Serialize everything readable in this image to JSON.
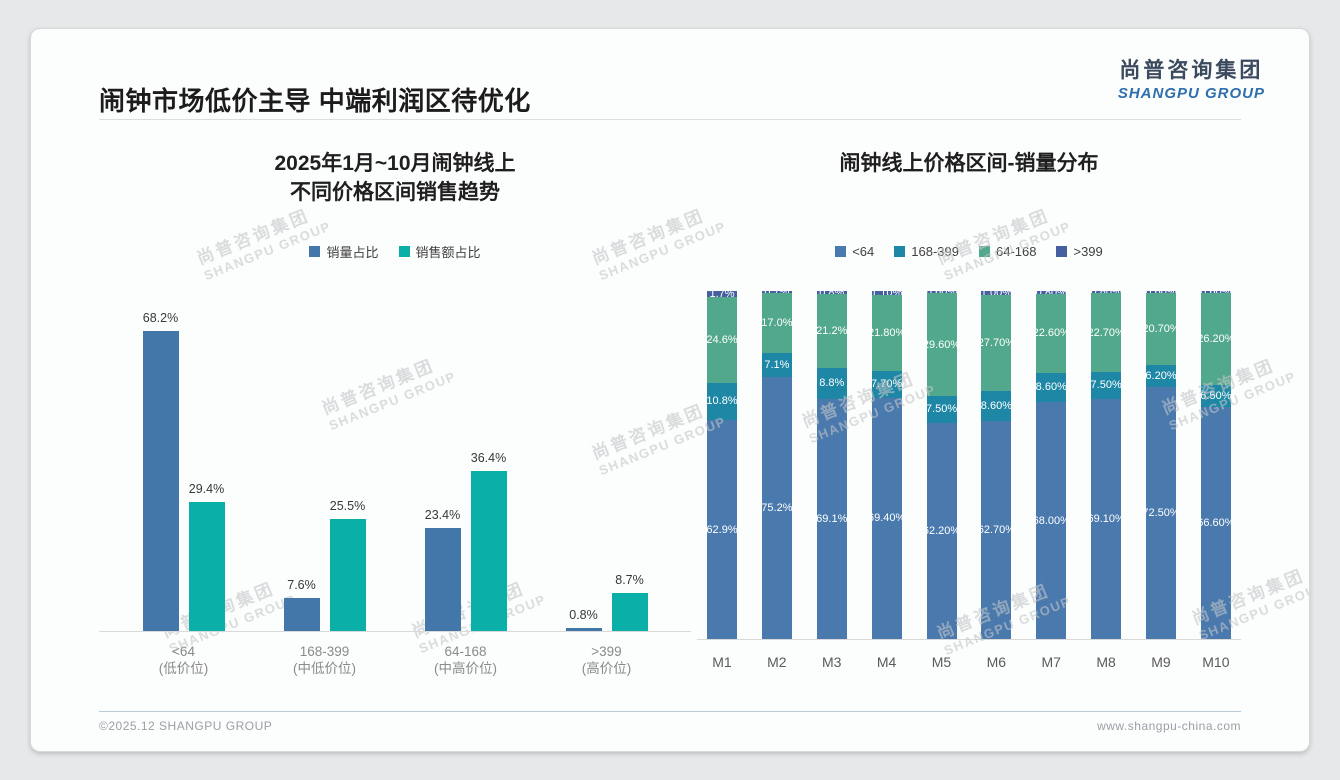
{
  "page": {
    "title": "闹钟市场低价主导 中端利润区待优化",
    "logo": {
      "cn": "尚普咨询集团",
      "en": "SHANGPU GROUP"
    },
    "watermark": {
      "line1": "尚普咨询集团",
      "line2": "SHANGPU GROUP"
    },
    "footer": {
      "left": "©2025.12 SHANGPU GROUP",
      "right": "www.shangpu-china.com"
    }
  },
  "colors": {
    "sales_volume_blue": "#4377aa",
    "sales_value_teal": "#0aafa8",
    "stack_lt64": "#4a79ad",
    "stack_168_399": "#1e87a5",
    "stack_64_168": "#52a88c",
    "stack_gt399": "#46609f",
    "axis_line": "#d9d9d9"
  },
  "chart_data": [
    {
      "type": "bar",
      "title_lines": [
        "2025年1月~10月闹钟线上",
        "不同价格区间销售趋势"
      ],
      "xlabel": "",
      "ylabel": "",
      "ylim": [
        0,
        75
      ],
      "grid": false,
      "legend_position": "top",
      "categories": [
        {
          "label": "<64",
          "sub": "(低价位)"
        },
        {
          "label": "168-399",
          "sub": "(中低价位)"
        },
        {
          "label": "64-168",
          "sub": "(中高价位)"
        },
        {
          "label": ">399",
          "sub": "(高价位)"
        }
      ],
      "series": [
        {
          "name": "销量占比",
          "color": "#4377aa",
          "values": [
            68.2,
            7.6,
            23.4,
            0.8
          ],
          "labels": [
            "68.2%",
            "7.6%",
            "23.4%",
            "0.8%"
          ]
        },
        {
          "name": "销售额占比",
          "color": "#0aafa8",
          "values": [
            29.4,
            25.5,
            36.4,
            8.7
          ],
          "labels": [
            "29.4%",
            "25.5%",
            "36.4%",
            "8.7%"
          ]
        }
      ]
    },
    {
      "type": "stacked-bar",
      "title_lines": [
        "闹钟线上价格区间-销量分布"
      ],
      "xlabel": "",
      "ylabel": "",
      "ylim": [
        0,
        100
      ],
      "grid": false,
      "legend_position": "top",
      "categories": [
        "M1",
        "M2",
        "M3",
        "M4",
        "M5",
        "M6",
        "M7",
        "M8",
        "M9",
        "M10"
      ],
      "series": [
        {
          "name": "<64",
          "color": "#4a79ad",
          "values": [
            62.9,
            75.2,
            69.1,
            69.4,
            62.2,
            62.7,
            68.0,
            69.1,
            72.5,
            66.6
          ],
          "labels": [
            "62.9%",
            "75.2%",
            "69.1%",
            "69.40%",
            "62.20%",
            "62.70%",
            "68.00%",
            "69.10%",
            "72.50%",
            "66.60%"
          ]
        },
        {
          "name": "168-399",
          "color": "#1e87a5",
          "values": [
            10.8,
            7.1,
            8.8,
            7.7,
            7.5,
            8.6,
            8.6,
            7.5,
            6.2,
            6.5
          ],
          "labels": [
            "10.8%",
            "7.1%",
            "8.8%",
            "7.70%",
            "7.50%",
            "8.60%",
            "8.60%",
            "7.50%",
            "6.20%",
            "6.50%"
          ]
        },
        {
          "name": "64-168",
          "color": "#52a88c",
          "values": [
            24.6,
            17.0,
            21.2,
            21.8,
            29.6,
            27.7,
            22.6,
            22.7,
            20.7,
            26.2
          ],
          "labels": [
            "24.6%",
            "17.0%",
            "21.2%",
            "21.80%",
            "29.60%",
            "27.70%",
            "22.60%",
            "22.70%",
            "20.70%",
            "26.20%"
          ]
        },
        {
          "name": ">399",
          "color": "#46609f",
          "values": [
            1.7,
            0.7,
            0.8,
            1.1,
            0.6,
            1.0,
            0.8,
            0.8,
            0.6,
            0.6
          ],
          "labels": [
            "1.7%",
            "0.7%",
            "0.8%",
            "1.10%",
            "0.60%",
            "1.00%",
            "0.80%",
            "0.80%",
            "0.60%",
            "0.60%"
          ]
        }
      ]
    }
  ]
}
